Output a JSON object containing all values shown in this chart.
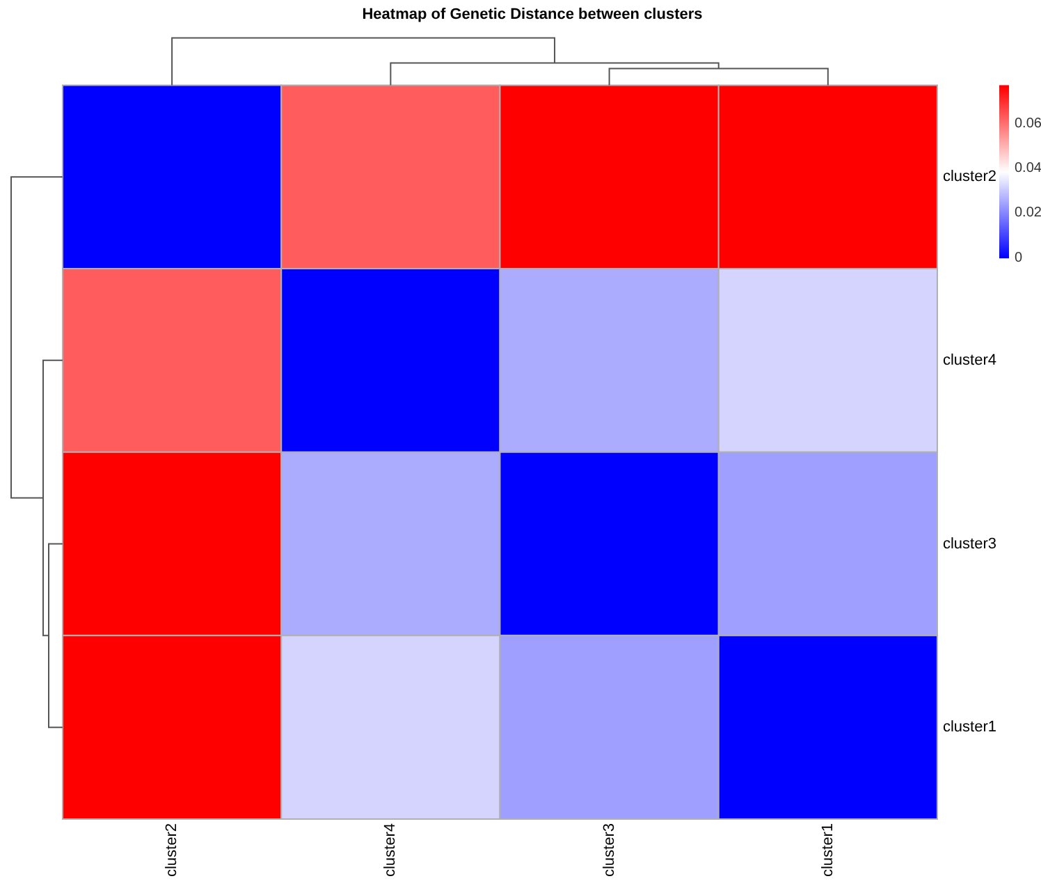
{
  "chart_data": {
    "type": "heatmap",
    "title": "Heatmap of Genetic Distance between clusters",
    "categories": [
      "cluster2",
      "cluster4",
      "cluster3",
      "cluster1"
    ],
    "y_categories": [
      "cluster2",
      "cluster4",
      "cluster3",
      "cluster1"
    ],
    "cells": [
      [
        0,
        0.063,
        0.077,
        0.077
      ],
      [
        0.063,
        0,
        0.026,
        0.032
      ],
      [
        0.077,
        0.026,
        0,
        0.024
      ],
      [
        0.077,
        0.032,
        0.024,
        0
      ]
    ],
    "clim": [
      0,
      0.077
    ],
    "cticks": [
      0,
      0.02,
      0.04,
      0.06
    ]
  }
}
